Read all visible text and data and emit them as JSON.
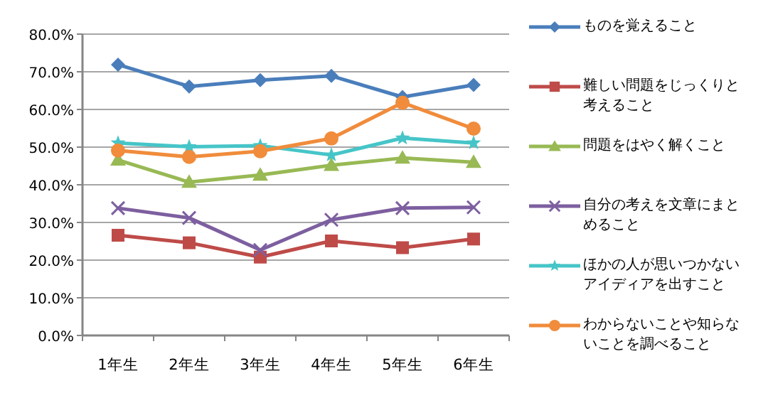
{
  "chart_data": {
    "type": "line",
    "categories": [
      "1年生",
      "2年生",
      "3年生",
      "4年生",
      "5年生",
      "6年生"
    ],
    "series": [
      {
        "name": "ものを覚えること",
        "color": "#4a7ebb",
        "marker": "diamond",
        "values": [
          71.9,
          66.1,
          67.8,
          68.9,
          63.3,
          66.5
        ]
      },
      {
        "name": "難しい問題をじっくりと考えること",
        "color": "#be4b48",
        "marker": "square",
        "values": [
          26.6,
          24.6,
          20.8,
          25.1,
          23.3,
          25.6
        ]
      },
      {
        "name": "問題をはやく解くこと",
        "color": "#98b954",
        "marker": "triangle",
        "values": [
          46.6,
          40.7,
          42.6,
          45.2,
          47.1,
          46.0
        ]
      },
      {
        "name": "自分の考えを文章にまとめること",
        "color": "#7d5fa0",
        "marker": "cross",
        "values": [
          33.8,
          31.2,
          22.7,
          30.7,
          33.8,
          34.0
        ]
      },
      {
        "name": "ほかの人が思いつかないアイディアを出すこと",
        "color": "#46c5c8",
        "marker": "star",
        "values": [
          51.1,
          50.1,
          50.4,
          47.9,
          52.4,
          51.1
        ]
      },
      {
        "name": "わからないことや知らないことを調べること",
        "color": "#f08c3c",
        "marker": "circle",
        "values": [
          49.1,
          47.4,
          48.9,
          52.3,
          61.8,
          54.9
        ]
      }
    ],
    "ylim": [
      0,
      80
    ],
    "yticks": [
      {
        "value": 0,
        "label": "0.0%"
      },
      {
        "value": 10,
        "label": "10.0%"
      },
      {
        "value": 20,
        "label": "20.0%"
      },
      {
        "value": 30,
        "label": "30.0%"
      },
      {
        "value": 40,
        "label": "40.0%"
      },
      {
        "value": 50,
        "label": "50.0%"
      },
      {
        "value": 60,
        "label": "60.0%"
      },
      {
        "value": 70,
        "label": "70.0%"
      },
      {
        "value": 80,
        "label": "80.0%"
      }
    ],
    "grid": "y",
    "legend": "right"
  }
}
